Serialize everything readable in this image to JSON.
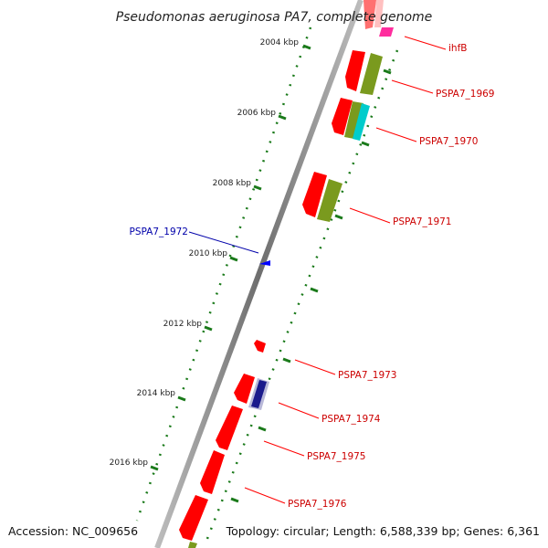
{
  "title": "Pseudomonas aeruginosa PA7, complete genome",
  "ticks": [
    "2004 kbp",
    "2006 kbp",
    "2008 kbp",
    "2010 kbp",
    "2012 kbp",
    "2014 kbp",
    "2016 kbp"
  ],
  "gene_labels": {
    "ihfB": "ihfB",
    "g1969": "PSPA7_1969",
    "g1970": "PSPA7_1970",
    "g1971": "PSPA7_1971",
    "g1972": "PSPA7_1972",
    "g1973": "PSPA7_1973",
    "g1974": "PSPA7_1974",
    "g1975": "PSPA7_1975",
    "g1976": "PSPA7_1976"
  },
  "footer": {
    "accession": "Accession: NC_009656",
    "summary": "Topology: circular; Length: 6,588,339 bp; Genes: 6,361"
  },
  "colors": {
    "cds": "#ff0000",
    "forward_label": "#cc0000",
    "reverse_label": "#0000aa",
    "olive": "#7a9a1e",
    "cyan": "#00cccc",
    "navy": "#1a1a8c",
    "pink": "#ff2d9e",
    "tick": "#1a7a1a"
  }
}
